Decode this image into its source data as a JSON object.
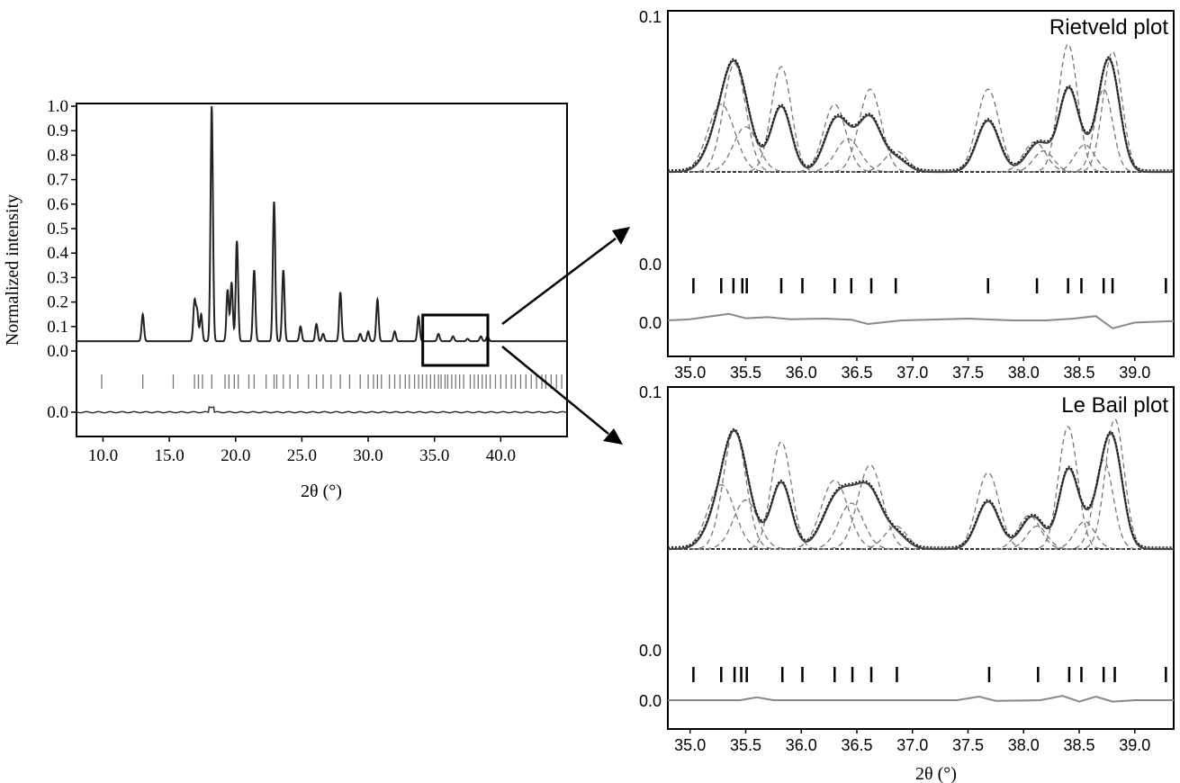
{
  "chart_data": [
    {
      "type": "line",
      "ylabel": "Normalized intensity",
      "xlabel": "2θ (°)",
      "xlim": [
        8,
        45
      ],
      "ylim": [
        0,
        1.0
      ],
      "x_ticks": [
        "10.0",
        "15.0",
        "20.0",
        "25.0",
        "30.0",
        "35.0",
        "40.0"
      ],
      "x_tick_values": [
        10,
        15,
        20,
        25,
        30,
        35,
        40
      ],
      "y_ticks": [
        "1.0",
        "0.9",
        "0.8",
        "0.7",
        "0.6",
        "0.5",
        "0.4",
        "0.3",
        "0.2",
        "0.1",
        "0.0"
      ],
      "y_tick_values": [
        1.0,
        0.9,
        0.8,
        0.7,
        0.6,
        0.5,
        0.4,
        0.3,
        0.2,
        0.1,
        0.0
      ],
      "diff_tick": "0.0",
      "peaks": [
        {
          "x": 13.0,
          "y": 0.15
        },
        {
          "x": 16.9,
          "y": 0.2
        },
        {
          "x": 17.1,
          "y": 0.16
        },
        {
          "x": 17.4,
          "y": 0.15
        },
        {
          "x": 18.2,
          "y": 1.0
        },
        {
          "x": 19.4,
          "y": 0.25
        },
        {
          "x": 19.7,
          "y": 0.28
        },
        {
          "x": 20.1,
          "y": 0.45
        },
        {
          "x": 21.4,
          "y": 0.33
        },
        {
          "x": 22.9,
          "y": 0.61
        },
        {
          "x": 23.6,
          "y": 0.33
        },
        {
          "x": 24.9,
          "y": 0.1
        },
        {
          "x": 26.1,
          "y": 0.11
        },
        {
          "x": 26.6,
          "y": 0.07
        },
        {
          "x": 27.9,
          "y": 0.24
        },
        {
          "x": 29.4,
          "y": 0.07
        },
        {
          "x": 30.0,
          "y": 0.08
        },
        {
          "x": 30.7,
          "y": 0.21
        },
        {
          "x": 32.0,
          "y": 0.08
        },
        {
          "x": 33.8,
          "y": 0.14
        },
        {
          "x": 35.3,
          "y": 0.07
        },
        {
          "x": 36.4,
          "y": 0.06
        },
        {
          "x": 37.5,
          "y": 0.05
        },
        {
          "x": 38.5,
          "y": 0.06
        },
        {
          "x": 39.0,
          "y": 0.06
        },
        {
          "x": 42.2,
          "y": 0.04
        },
        {
          "x": 43.5,
          "y": 0.04
        }
      ],
      "baseline": 0.04,
      "reflections": [
        9.9,
        13.0,
        15.3,
        16.9,
        17.2,
        17.5,
        18.2,
        19.2,
        19.5,
        19.9,
        20.2,
        21.0,
        21.4,
        22.3,
        22.9,
        23.1,
        23.6,
        24.1,
        24.7,
        25.5,
        26.1,
        26.6,
        27.2,
        27.9,
        28.6,
        29.4,
        30.0,
        30.4,
        30.7,
        31.0,
        31.6,
        32.0,
        32.4,
        32.8,
        33.1,
        33.5,
        33.8,
        34.1,
        34.4,
        34.7,
        35.0,
        35.3,
        35.5,
        35.8,
        36.0,
        36.3,
        36.6,
        36.9,
        37.2,
        37.7,
        38.0,
        38.3,
        38.6,
        38.9,
        39.2,
        39.6,
        40.0,
        40.4,
        40.8,
        41.1,
        41.5,
        41.9,
        42.3,
        42.7,
        43.1,
        43.4,
        43.8,
        44.2,
        44.6
      ],
      "zoom_box_x": [
        35,
        39.5
      ]
    },
    {
      "type": "line",
      "title": "Rietveld plot",
      "xlim": [
        34.8,
        39.35
      ],
      "x_ticks": [
        "35.0",
        "35.5",
        "36.0",
        "36.5",
        "37.0",
        "37.5",
        "38.0",
        "38.5",
        "39.0"
      ],
      "x_tick_values": [
        35.0,
        35.5,
        36.0,
        36.5,
        37.0,
        37.5,
        38.0,
        38.5,
        39.0
      ],
      "y_ticks": [
        "0.1",
        "0.0",
        "0.0"
      ],
      "components": [
        {
          "x": 35.28,
          "h": 0.45,
          "w": 0.12
        },
        {
          "x": 35.4,
          "h": 0.72,
          "w": 0.1
        },
        {
          "x": 35.5,
          "h": 0.3,
          "w": 0.11
        },
        {
          "x": 35.82,
          "h": 0.7,
          "w": 0.09
        },
        {
          "x": 36.3,
          "h": 0.45,
          "w": 0.1
        },
        {
          "x": 36.42,
          "h": 0.22,
          "w": 0.11
        },
        {
          "x": 36.62,
          "h": 0.55,
          "w": 0.1
        },
        {
          "x": 36.85,
          "h": 0.14,
          "w": 0.1
        },
        {
          "x": 37.68,
          "h": 0.55,
          "w": 0.1
        },
        {
          "x": 38.1,
          "h": 0.2,
          "w": 0.1
        },
        {
          "x": 38.18,
          "h": 0.14,
          "w": 0.09
        },
        {
          "x": 38.4,
          "h": 0.85,
          "w": 0.085
        },
        {
          "x": 38.55,
          "h": 0.18,
          "w": 0.09
        },
        {
          "x": 38.72,
          "h": 0.55,
          "w": 0.08
        },
        {
          "x": 38.8,
          "h": 0.8,
          "w": 0.085
        }
      ],
      "reflections": [
        35.03,
        35.28,
        35.39,
        35.47,
        35.51,
        35.82,
        36.01,
        36.3,
        36.45,
        36.63,
        36.85,
        37.68,
        38.12,
        38.4,
        38.52,
        38.72,
        38.8,
        39.28
      ],
      "difference": [
        {
          "x": 34.8,
          "y": 0.0
        },
        {
          "x": 35.0,
          "y": 0.15
        },
        {
          "x": 35.2,
          "y": 0.6
        },
        {
          "x": 35.35,
          "y": 0.9
        },
        {
          "x": 35.5,
          "y": 0.3
        },
        {
          "x": 35.7,
          "y": 0.45
        },
        {
          "x": 35.9,
          "y": 0.15
        },
        {
          "x": 36.2,
          "y": 0.25
        },
        {
          "x": 36.45,
          "y": 0.1
        },
        {
          "x": 36.6,
          "y": -0.5
        },
        {
          "x": 36.9,
          "y": 0.0
        },
        {
          "x": 37.5,
          "y": 0.25
        },
        {
          "x": 37.9,
          "y": 0.0
        },
        {
          "x": 38.2,
          "y": 0.0
        },
        {
          "x": 38.45,
          "y": 0.25
        },
        {
          "x": 38.65,
          "y": 0.6
        },
        {
          "x": 38.8,
          "y": -1.1
        },
        {
          "x": 39.0,
          "y": -0.3
        },
        {
          "x": 39.35,
          "y": -0.1
        }
      ]
    },
    {
      "type": "line",
      "title": "Le Bail plot",
      "xlabel": "2θ (°)",
      "xlim": [
        34.8,
        39.35
      ],
      "x_ticks": [
        "35.0",
        "35.5",
        "36.0",
        "36.5",
        "37.0",
        "37.5",
        "38.0",
        "38.5",
        "39.0"
      ],
      "x_tick_values": [
        35.0,
        35.5,
        36.0,
        36.5,
        37.0,
        37.5,
        38.0,
        38.5,
        39.0
      ],
      "y_ticks": [
        "0.1",
        "0.0",
        "0.0"
      ],
      "components": [
        {
          "x": 35.28,
          "h": 0.42,
          "w": 0.12
        },
        {
          "x": 35.4,
          "h": 0.78,
          "w": 0.1
        },
        {
          "x": 35.5,
          "h": 0.32,
          "w": 0.11
        },
        {
          "x": 35.82,
          "h": 0.7,
          "w": 0.09
        },
        {
          "x": 36.3,
          "h": 0.45,
          "w": 0.12
        },
        {
          "x": 36.45,
          "h": 0.3,
          "w": 0.11
        },
        {
          "x": 36.62,
          "h": 0.55,
          "w": 0.11
        },
        {
          "x": 36.85,
          "h": 0.15,
          "w": 0.1
        },
        {
          "x": 37.68,
          "h": 0.5,
          "w": 0.1
        },
        {
          "x": 38.05,
          "h": 0.22,
          "w": 0.1
        },
        {
          "x": 38.12,
          "h": 0.15,
          "w": 0.09
        },
        {
          "x": 38.4,
          "h": 0.8,
          "w": 0.085
        },
        {
          "x": 38.55,
          "h": 0.18,
          "w": 0.09
        },
        {
          "x": 38.72,
          "h": 0.58,
          "w": 0.085
        },
        {
          "x": 38.82,
          "h": 0.85,
          "w": 0.085
        }
      ],
      "reflections": [
        35.03,
        35.28,
        35.4,
        35.46,
        35.51,
        35.83,
        36.01,
        36.3,
        36.46,
        36.63,
        36.86,
        37.69,
        38.13,
        38.41,
        38.52,
        38.72,
        38.82,
        39.28
      ],
      "difference": [
        {
          "x": 34.8,
          "y": 0.0
        },
        {
          "x": 35.2,
          "y": 0.0
        },
        {
          "x": 35.45,
          "y": 0.0
        },
        {
          "x": 35.6,
          "y": 0.4
        },
        {
          "x": 35.75,
          "y": 0.0
        },
        {
          "x": 37.4,
          "y": 0.0
        },
        {
          "x": 37.6,
          "y": 0.5
        },
        {
          "x": 37.75,
          "y": -0.1
        },
        {
          "x": 38.15,
          "y": 0.0
        },
        {
          "x": 38.35,
          "y": 0.6
        },
        {
          "x": 38.5,
          "y": -0.2
        },
        {
          "x": 38.65,
          "y": 0.5
        },
        {
          "x": 38.8,
          "y": -0.2
        },
        {
          "x": 39.0,
          "y": 0.0
        },
        {
          "x": 39.35,
          "y": 0.0
        }
      ]
    }
  ]
}
